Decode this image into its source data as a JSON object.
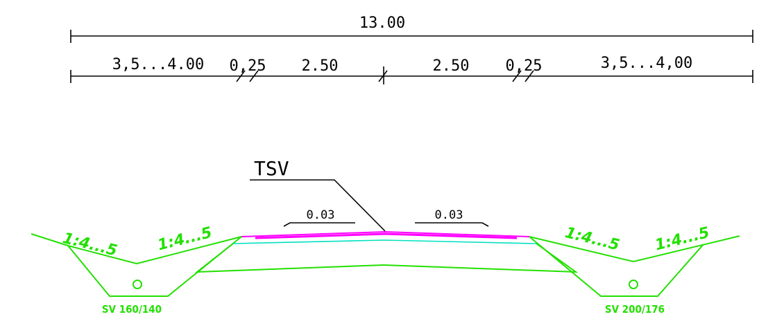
{
  "dimensions": {
    "overall": "13.00",
    "left_slope_zone": "3,5...4.00",
    "left_shoulder": "0,25",
    "left_lane": "2.50",
    "right_lane": "2.50",
    "right_shoulder": "0,25",
    "right_slope_zone": "3,5...4,00"
  },
  "road": {
    "surface_label": "TSV",
    "left_crossfall": "0.03",
    "right_crossfall": "0.03"
  },
  "slopes": {
    "left_outer": "1:4...5",
    "left_inner": "1:4...5",
    "right_inner": "1:4...5",
    "right_outer": "1:4...5"
  },
  "drains": {
    "left": "SV 160/140",
    "right": "SV 200/176"
  },
  "colors": {
    "dimension": "#000000",
    "ground": "#22e000",
    "pavement": "#ff00ff",
    "base": "#00e0c0"
  }
}
